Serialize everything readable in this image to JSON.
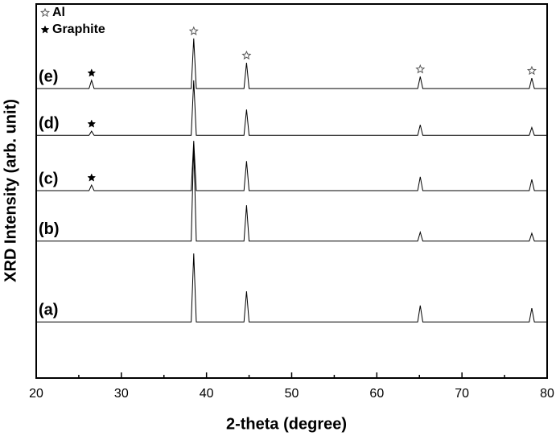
{
  "chart_data": {
    "type": "line",
    "xlabel": "2-theta (degree)",
    "ylabel": "XRD Intensity (arb. unit)",
    "xlim": [
      20,
      80
    ],
    "xticks": [
      20,
      30,
      40,
      50,
      60,
      70,
      80
    ],
    "xminorticks": [
      25,
      35,
      45,
      55,
      65,
      75
    ],
    "ylim": [
      0,
      100
    ],
    "x": [
      20,
      26.2,
      26.5,
      26.8,
      38.2,
      38.5,
      38.8,
      44.4,
      44.7,
      45.0,
      64.8,
      65.1,
      65.4,
      77.9,
      78.2,
      78.5,
      80
    ],
    "series": [
      {
        "name": "(a)",
        "color": "#000000",
        "values": [
          15,
          15,
          15,
          15,
          15,
          33.3,
          15,
          15,
          23.2,
          15,
          15,
          19.4,
          15,
          15,
          18.7,
          15,
          15
        ]
      },
      {
        "name": "(b)",
        "color": "#000000",
        "values": [
          36.6,
          36.6,
          36.6,
          36.6,
          36.6,
          62.4,
          36.6,
          36.6,
          46.2,
          36.6,
          36.6,
          39,
          36.6,
          36.6,
          38.7,
          36.6,
          36.6
        ]
      },
      {
        "name": "(c)",
        "color": "#000000",
        "values": [
          50.1,
          50.1,
          51.6,
          50.1,
          50.1,
          63.4,
          50.1,
          50.1,
          58,
          50.1,
          50.1,
          53.8,
          50.1,
          50.1,
          53.1,
          50.1,
          50.1
        ]
      },
      {
        "name": "(d)",
        "color": "#000000",
        "values": [
          64.9,
          64.9,
          66,
          64.9,
          64.9,
          79.6,
          64.9,
          64.9,
          71.8,
          64.9,
          64.9,
          67.7,
          64.9,
          64.9,
          67,
          64.9,
          64.9
        ]
      },
      {
        "name": "(e)",
        "color": "#000000",
        "values": [
          77.4,
          77.4,
          79.6,
          77.4,
          77.4,
          90.8,
          77.4,
          77.4,
          84.3,
          77.4,
          77.4,
          80.6,
          77.4,
          77.4,
          80.2,
          77.4,
          77.4
        ]
      }
    ],
    "peak_markers": [
      {
        "name": "Al",
        "symbol": "open-star",
        "x": [
          38.5,
          44.7,
          65.1,
          78.2
        ],
        "series": [
          4
        ]
      },
      {
        "name": "Graphite",
        "symbol": "filled-star",
        "x": [
          26.5
        ],
        "series": [
          2,
          3,
          4
        ]
      }
    ]
  }
}
